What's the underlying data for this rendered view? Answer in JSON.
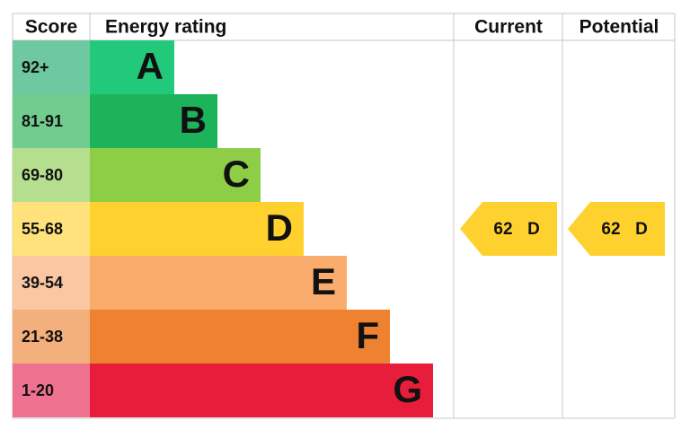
{
  "header": {
    "score": "Score",
    "energy_rating": "Energy rating",
    "current": "Current",
    "potential": "Potential"
  },
  "rows": [
    {
      "score": "92+",
      "band": "A",
      "color": "#22c97b",
      "score_color": "#6ec9a0"
    },
    {
      "score": "81-91",
      "band": "B",
      "color": "#1cb35a",
      "score_color": "#73cc8f"
    },
    {
      "score": "69-80",
      "band": "C",
      "color": "#8dce46",
      "score_color": "#b6de8f"
    },
    {
      "score": "55-68",
      "band": "D",
      "color": "#ffd12f",
      "score_color": "#ffe27c"
    },
    {
      "score": "39-54",
      "band": "E",
      "color": "#f9ac6b",
      "score_color": "#fbc7a2"
    },
    {
      "score": "21-38",
      "band": "F",
      "color": "#ef8230",
      "score_color": "#f3b07c"
    },
    {
      "score": "1-20",
      "band": "G",
      "color": "#e81d3c",
      "score_color": "#ef7290"
    }
  ],
  "current": {
    "value": 62,
    "band": "D"
  },
  "potential": {
    "value": 62,
    "band": "D"
  }
}
